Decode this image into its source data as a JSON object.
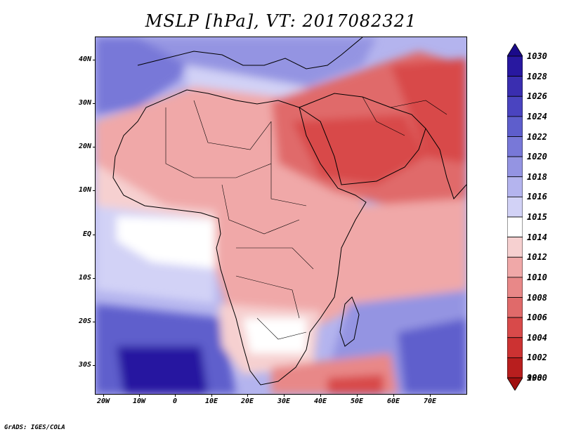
{
  "title": "MSLP [hPa], VT: 2017082321",
  "credit": "GrADS: IGES/COLA",
  "lat_labels": [
    "40N",
    "30N",
    "20N",
    "10N",
    "EQ",
    "10S",
    "20S",
    "30S"
  ],
  "lon_labels": [
    "20W",
    "10W",
    "0",
    "10E",
    "20E",
    "30E",
    "40E",
    "50E",
    "60E",
    "70E"
  ],
  "colorbar": {
    "levels": [
      "1030",
      "1028",
      "1026",
      "1024",
      "1022",
      "1020",
      "1018",
      "1016",
      "1015",
      "1014",
      "1012",
      "1010",
      "1008",
      "1006",
      "1004",
      "1002",
      "1000",
      "998"
    ],
    "colors": [
      "#1a0a8a",
      "#2818a0",
      "#3a2eb0",
      "#4a44c0",
      "#5e5ecc",
      "#7878d8",
      "#9494e2",
      "#b4b4ee",
      "#d2d2f6",
      "#ffffff",
      "#f6d0d0",
      "#f0a8a8",
      "#e88888",
      "#e06a6a",
      "#d84a4a",
      "#cc3232",
      "#b81e1e",
      "#a01010"
    ]
  },
  "map": {
    "variable": "Mean sea level pressure",
    "units": "hPa",
    "valid_time": "2017082321",
    "domain": {
      "lon_min": -22,
      "lon_max": 81,
      "lat_min": -36,
      "lat_max": 45
    }
  }
}
